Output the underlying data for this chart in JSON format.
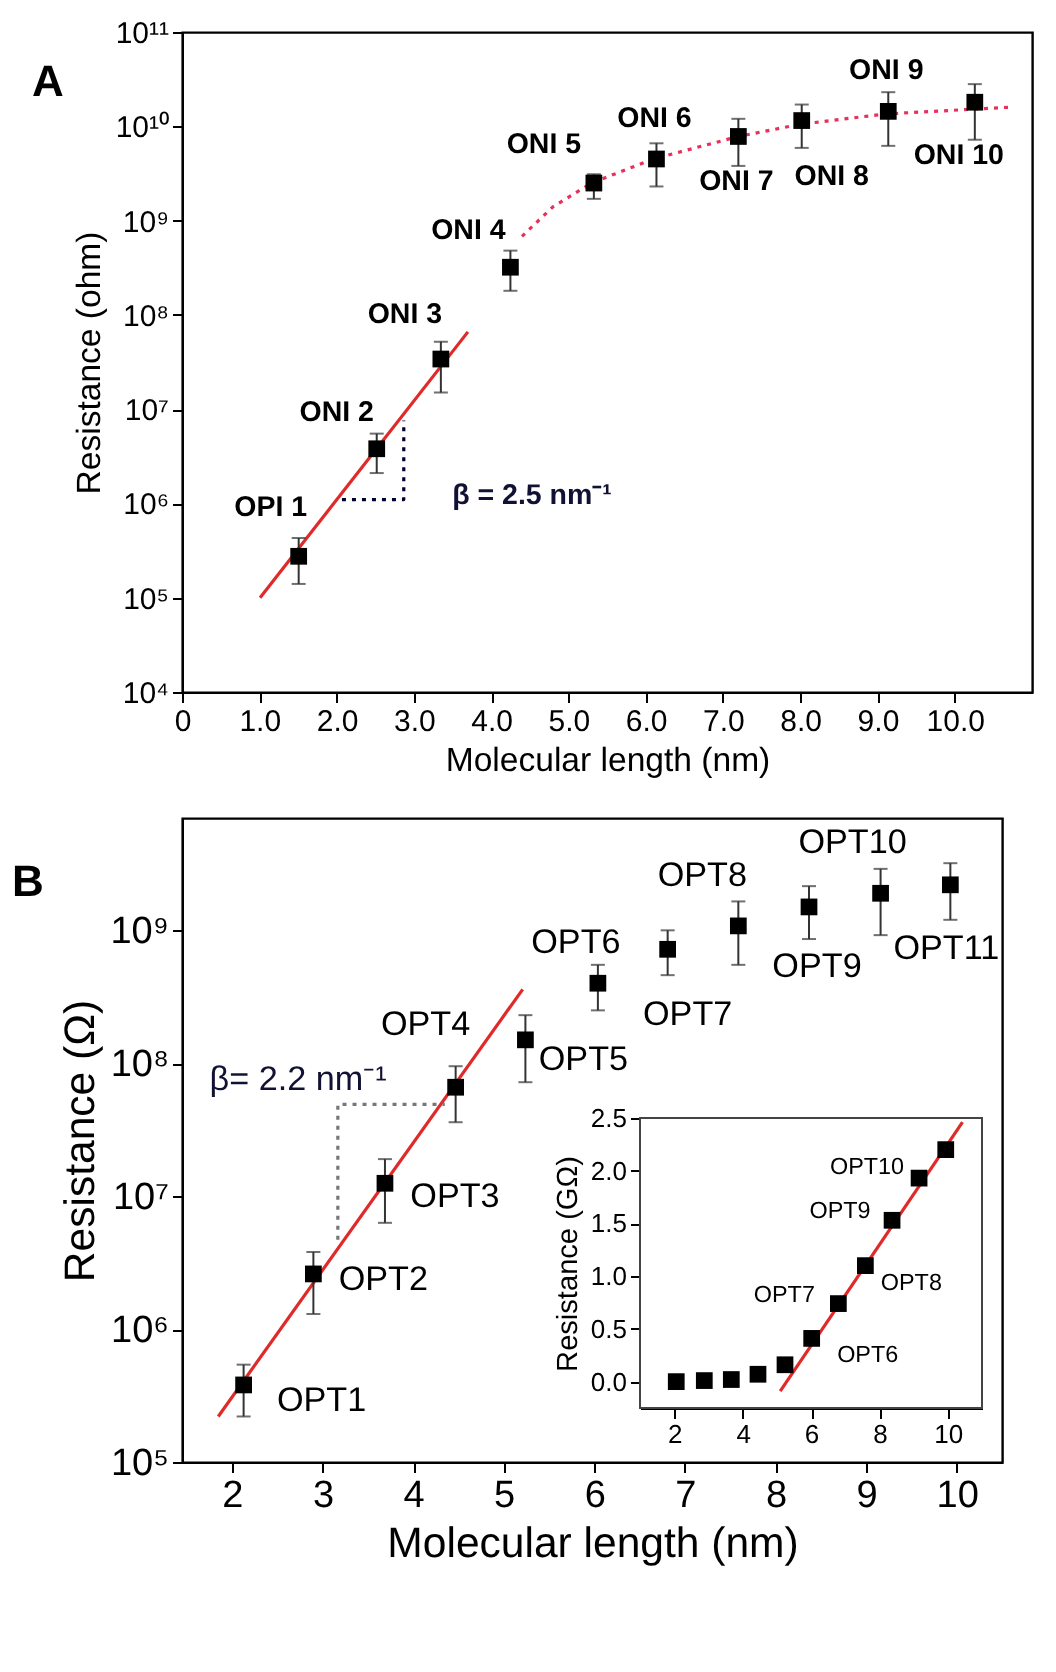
{
  "chart_data": [
    {
      "type": "scatter",
      "title": "A",
      "xlabel": "Molecular length (nm)",
      "ylabel": "Resistance (ohm)",
      "log": "y",
      "grid": false,
      "xlim": [
        0,
        11
      ],
      "xticks": [
        0,
        {
          "value": 1,
          "label": "1.0"
        },
        {
          "value": 2,
          "label": "2.0"
        },
        {
          "value": 3,
          "label": "3.0"
        },
        {
          "value": 4,
          "label": "4.0"
        },
        {
          "value": 5,
          "label": "5.0"
        },
        {
          "value": 6,
          "label": "6.0"
        },
        {
          "value": 7,
          "label": "7.0"
        },
        {
          "value": 8,
          "label": "8.0"
        },
        {
          "value": 9,
          "label": "9.0"
        },
        {
          "value": 10,
          "label": "10.0"
        }
      ],
      "ylim": [
        10000.0,
        100000000000.0
      ],
      "yticks": [
        {
          "value": 10000.0,
          "label": "10⁴"
        },
        {
          "value": 100000.0,
          "label": "10⁵"
        },
        {
          "value": 1000000.0,
          "label": "10⁶"
        },
        {
          "value": 10000000.0,
          "label": "10⁷"
        },
        {
          "value": 100000000.0,
          "label": "10⁸"
        },
        {
          "value": 1000000000.0,
          "label": "10⁹"
        },
        {
          "value": 10000000000.0,
          "label": "10¹⁰"
        },
        {
          "value": 100000000000.0,
          "label": "10¹¹"
        }
      ],
      "series": [
        {
          "type": "line",
          "color": "#e02a2a",
          "line_style": "solid",
          "x": [
            1.01,
            3.7
          ],
          "values": [
            100000.0,
            66000000.0
          ]
        },
        {
          "type": "line",
          "color": "#e8305a",
          "line_style": "dotted",
          "x": [
            4.4,
            4.8,
            5.3,
            6.1,
            7.2,
            8.0,
            9.1,
            10.75
          ],
          "values": [
            680000000.0,
            1400000000.0,
            2500000000.0,
            4500000000.0,
            7800000000.0,
            10500000000.0,
            13500000000.0,
            16000000000.0
          ]
        },
        {
          "type": "line",
          "color": "#000033",
          "line_style": "dotted",
          "x": [
            2.07,
            2.87,
            2.87
          ],
          "values": [
            1100000.0,
            1100000.0,
            7600000.0
          ]
        },
        {
          "color": "#000000",
          "marker": "square",
          "x": [
            1.51,
            2.52,
            3.35,
            4.25,
            5.33,
            6.14,
            7.2,
            8.02,
            9.14,
            10.26
          ],
          "values": [
            275000.0,
            3800000.0,
            34000000.0,
            320000000.0,
            2500000000.0,
            4500000000.0,
            7800000000.0,
            11500000000.0,
            14400000000.0,
            18000000000.0
          ],
          "errors": [
            [
              140000.0,
              430000.0
            ],
            [
              2100000.0,
              5500000.0
            ],
            [
              15000000.0,
              52000000.0
            ],
            [
              180000000.0,
              480000000.0
            ],
            [
              1700000000.0,
              3100000000.0
            ],
            [
              2300000000.0,
              6600000000.0
            ],
            [
              3800000000.0,
              12000000000.0
            ],
            [
              5900000000.0,
              17000000000.0
            ],
            [
              6200000000.0,
              23000000000.0
            ],
            [
              7200000000.0,
              28000000000.0
            ]
          ],
          "value_labels": [
            "OPI 1",
            "ONI 2",
            "ONI 3",
            "ONI 4",
            "ONI 5",
            "ONI 6",
            "ONI 7",
            "ONI 8",
            "ONI 9",
            "ONI 10"
          ]
        }
      ],
      "annotations": [
        "β = 2.5 nm⁻¹"
      ]
    },
    {
      "type": "scatter",
      "title": "B",
      "xlabel": "Molecular length (nm)",
      "ylabel": "Resistance (Ω)",
      "log": "y",
      "grid": false,
      "xlim": [
        1.45,
        10.5
      ],
      "xticks": [
        2,
        3,
        4,
        5,
        6,
        7,
        8,
        9,
        10
      ],
      "ylim": [
        100000.0,
        7000000000.0
      ],
      "yticks": [
        {
          "value": 100000.0,
          "label": "10⁵"
        },
        {
          "value": 1000000.0,
          "label": "10⁶"
        },
        {
          "value": 10000000.0,
          "label": "10⁷"
        },
        {
          "value": 100000000.0,
          "label": "10⁸"
        },
        {
          "value": 1000000000.0,
          "label": "10⁹"
        }
      ],
      "series": [
        {
          "type": "line",
          "color": "#e02a2a",
          "line_style": "solid",
          "x": [
            1.85,
            5.21
          ],
          "values": [
            220000.0,
            360000000.0
          ]
        },
        {
          "type": "line",
          "color": "#777777",
          "line_style": "dotted",
          "x": [
            3.17,
            3.17,
            4.35
          ],
          "values": [
            4700000.0,
            49000000.0,
            49000000.0
          ]
        },
        {
          "color": "#000000",
          "marker": "square",
          "x": [
            2.13,
            2.9,
            3.69,
            4.47,
            5.24,
            6.04,
            6.81,
            7.59,
            8.37,
            9.16,
            9.93
          ],
          "values": [
            380000.0,
            2600000.0,
            12500000.0,
            66000000.0,
            150000000.0,
            400000000.0,
            720000000.0,
            1080000000.0,
            1500000000.0,
            1900000000.0,
            2200000000.0
          ],
          "errors": [
            [
              220000.0,
              540000.0
            ],
            [
              1300000.0,
              3800000.0
            ],
            [
              6300000.0,
              19000000.0
            ],
            [
              36000000.0,
              95000000.0
            ],
            [
              72000000.0,
              230000000.0
            ],
            [
              250000000.0,
              550000000.0
            ],
            [
              460000000.0,
              1000000000.0
            ],
            [
              550000000.0,
              1650000000.0
            ],
            [
              860000000.0,
              2150000000.0
            ],
            [
              920000000.0,
              2900000000.0
            ],
            [
              1200000000.0,
              3200000000.0
            ]
          ],
          "value_labels": [
            "OPT1",
            "OPT2",
            "OPT3",
            "OPT4",
            "OPT5",
            "OPT6",
            "OPT7",
            "OPT8",
            "OPT9",
            "OPT10",
            "OPT11"
          ]
        }
      ],
      "annotations": [
        "β= 2.2 nm⁻¹"
      ]
    },
    {
      "type": "scatter",
      "ylabel": "Resistance (GΩ)",
      "grid": false,
      "xlim": [
        1,
        11
      ],
      "xticks": [
        2,
        4,
        6,
        8,
        10
      ],
      "ylim": [
        -0.25,
        2.5
      ],
      "yticks": [
        {
          "value": 0,
          "label": "0.0"
        },
        {
          "value": 0.5,
          "label": "0.5"
        },
        {
          "value": 1,
          "label": "1.0"
        },
        {
          "value": 1.5,
          "label": "1.5"
        },
        {
          "value": 2,
          "label": "2.0"
        },
        {
          "value": 2.5,
          "label": "2.5"
        }
      ],
      "series": [
        {
          "type": "line",
          "color": "#e02a2a",
          "line_style": "solid",
          "x": [
            5.1,
            10.43
          ],
          "values": [
            -0.09,
            2.46
          ]
        },
        {
          "color": "#000000",
          "marker": "square",
          "x": [
            2.06,
            2.88,
            3.67,
            4.45,
            5.24,
            6.02,
            6.8,
            7.59,
            8.37,
            9.16,
            9.94
          ],
          "values": [
            0.0,
            0.01,
            0.02,
            0.07,
            0.16,
            0.41,
            0.74,
            1.1,
            1.53,
            1.93,
            2.2
          ],
          "value_labels": [
            null,
            null,
            null,
            null,
            null,
            "OPT6",
            "OPT7",
            "OPT8",
            "OPT9",
            "OPT10",
            null
          ]
        }
      ]
    }
  ]
}
